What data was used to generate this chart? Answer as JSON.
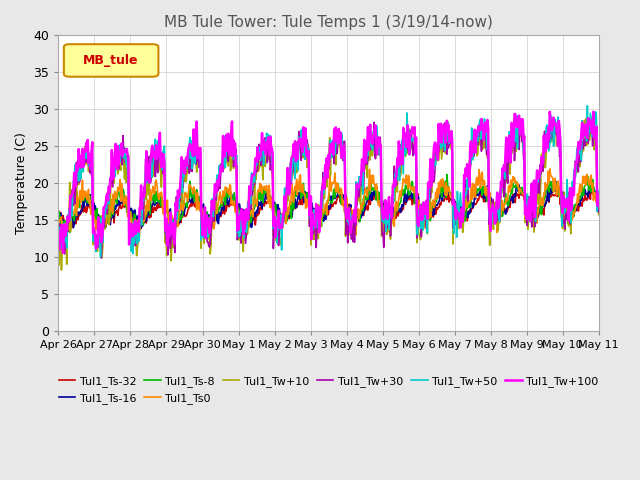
{
  "title": "MB Tule Tower: Tule Temps 1 (3/19/14-now)",
  "ylabel": "Temperature (C)",
  "ylim": [
    0,
    40
  ],
  "yticks": [
    0,
    5,
    10,
    15,
    20,
    25,
    30,
    35,
    40
  ],
  "background_color": "#e8e8e8",
  "plot_bg_color": "#ffffff",
  "legend_label": "MB_tule",
  "legend_box_color": "#ffff99",
  "legend_box_edge": "#cc8800",
  "series_names": [
    "Tul1_Ts-32",
    "Tul1_Ts-16",
    "Tul1_Ts-8",
    "Tul1_Ts0",
    "Tul1_Tw+10",
    "Tul1_Tw+30",
    "Tul1_Tw+50",
    "Tul1_Tw+100"
  ],
  "series_colors": [
    "#cc0000",
    "#000099",
    "#00bb00",
    "#ff8800",
    "#aaaa00",
    "#aa00aa",
    "#00cccc",
    "#ff00ff"
  ],
  "series_lw": [
    1.2,
    1.2,
    1.2,
    1.2,
    1.2,
    1.2,
    1.2,
    1.8
  ],
  "xtick_labels": [
    "Apr 26",
    "Apr 27",
    "Apr 28",
    "Apr 29",
    "Apr 30",
    "May 1",
    "May 2",
    "May 3",
    "May 4",
    "May 5",
    "May 6",
    "May 7",
    "May 8",
    "May 9",
    "May 10",
    "May 11"
  ],
  "n_days": 15,
  "samples_per_day": 48
}
